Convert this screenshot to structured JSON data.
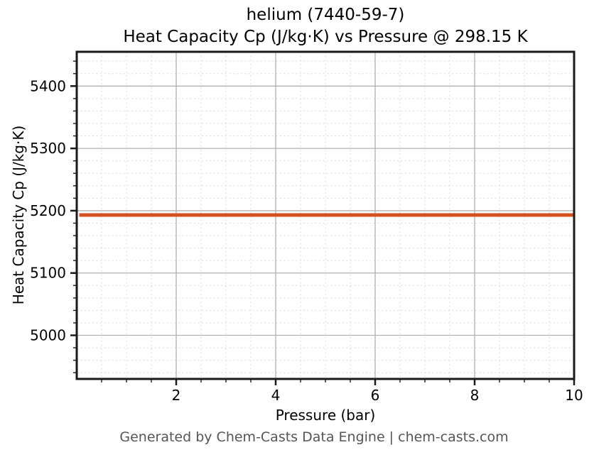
{
  "chart_data": {
    "type": "line",
    "title_lines": [
      "helium (7440-59-7)",
      "Heat Capacity Cp (J/kg·K) vs Pressure @ 298.15 K"
    ],
    "xlabel": "Pressure (bar)",
    "ylabel": "Heat Capacity Cp (J/kg·K)",
    "xlim": [
      0,
      10
    ],
    "ylim": [
      4930,
      5455
    ],
    "x_major_ticks": [
      2,
      4,
      6,
      8,
      10
    ],
    "x_minor_step": 0.5,
    "y_major_ticks": [
      5000,
      5100,
      5200,
      5300,
      5400
    ],
    "y_minor_step": 20,
    "grid": {
      "major": true,
      "minor": true,
      "minor_style": "dashed"
    },
    "legend": "none",
    "series": [
      {
        "name": "Heat Capacity Cp",
        "x": [
          0.05,
          2,
          4,
          6,
          8,
          10
        ],
        "y": [
          5193,
          5193,
          5193,
          5193,
          5193,
          5193
        ],
        "color": "#d4511e",
        "linewidth": 5
      }
    ]
  },
  "footer": {
    "text": "Generated by Chem-Casts Data Engine | chem-casts.com"
  },
  "colors": {
    "line": "#d4511e",
    "major_grid": "#b0b0b0",
    "minor_grid": "#dadada",
    "spine": "#1a1a1a",
    "tick_label": "#000000",
    "footer_text": "#555555",
    "background": "#ffffff"
  }
}
